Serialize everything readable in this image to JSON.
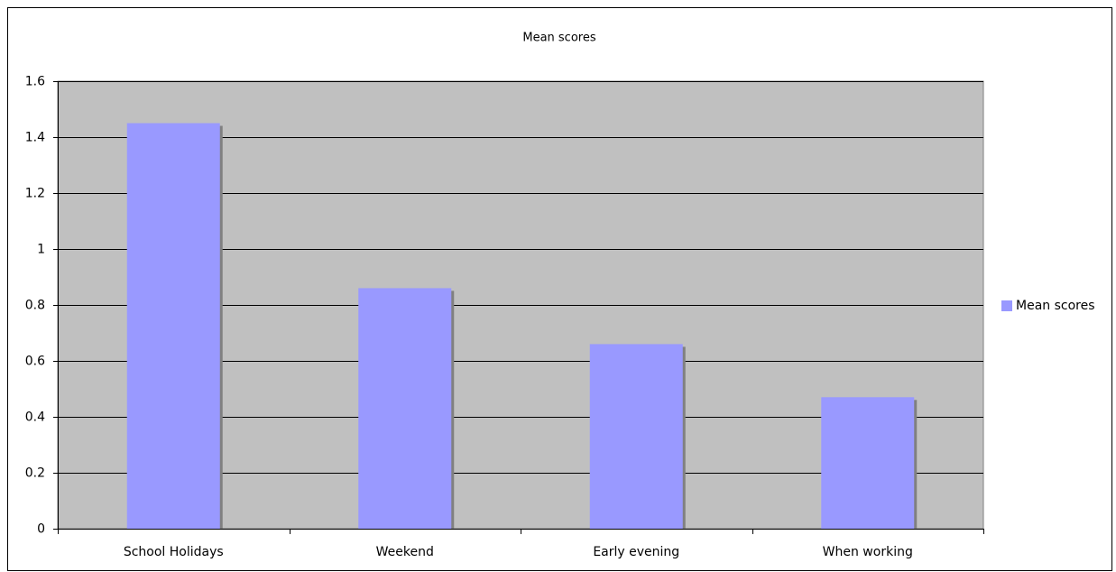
{
  "chart_data": {
    "type": "bar",
    "title": "Mean scores",
    "categories": [
      "School Holidays",
      "Weekend",
      "Early evening",
      "When working"
    ],
    "series": [
      {
        "name": "Mean scores",
        "color": "#9999ff",
        "values": [
          1.45,
          0.86,
          0.66,
          0.47
        ]
      }
    ],
    "ylim": [
      0,
      1.6
    ],
    "yticks": [
      0,
      0.2,
      0.4,
      0.6,
      0.8,
      1,
      1.2,
      1.4,
      1.6
    ],
    "grid": true,
    "legend": "right"
  }
}
